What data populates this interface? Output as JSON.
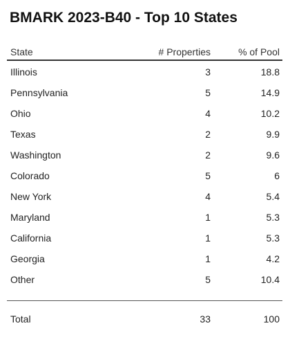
{
  "title": "BMARK 2023-B40 - Top 10 States",
  "table": {
    "headers": {
      "state": "State",
      "properties": "# Properties",
      "pool": "% of Pool"
    },
    "rows": [
      {
        "state": "Illinois",
        "properties": "3",
        "pool": "18.8"
      },
      {
        "state": "Pennsylvania",
        "properties": "5",
        "pool": "14.9"
      },
      {
        "state": "Ohio",
        "properties": "4",
        "pool": "10.2"
      },
      {
        "state": "Texas",
        "properties": "2",
        "pool": "9.9"
      },
      {
        "state": "Washington",
        "properties": "2",
        "pool": "9.6"
      },
      {
        "state": "Colorado",
        "properties": "5",
        "pool": "6"
      },
      {
        "state": "New York",
        "properties": "4",
        "pool": "5.4"
      },
      {
        "state": "Maryland",
        "properties": "1",
        "pool": "5.3"
      },
      {
        "state": "California",
        "properties": "1",
        "pool": "5.3"
      },
      {
        "state": "Georgia",
        "properties": "1",
        "pool": "4.2"
      },
      {
        "state": "Other",
        "properties": "5",
        "pool": "10.4"
      }
    ],
    "total": {
      "state": "Total",
      "properties": "33",
      "pool": "100"
    }
  }
}
